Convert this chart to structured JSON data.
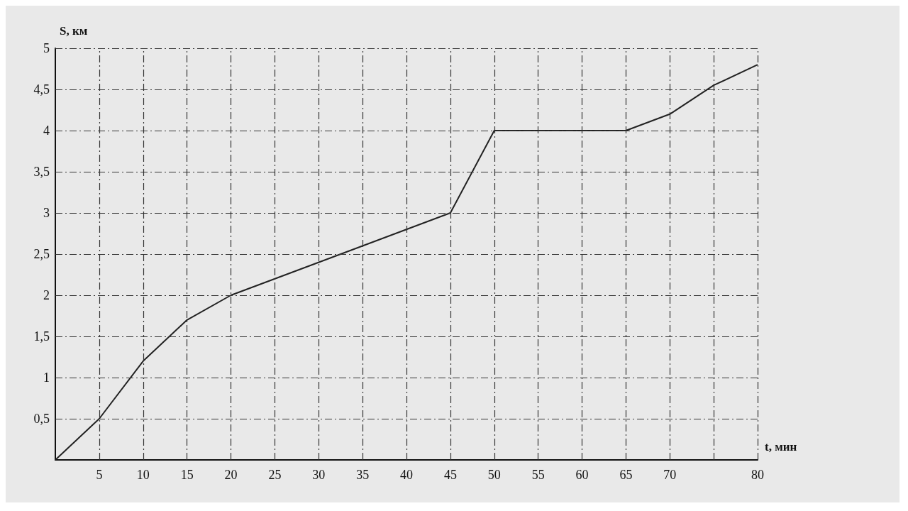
{
  "chart_data": {
    "type": "line",
    "xlabel": "t, мин",
    "ylabel": "S, км",
    "x": [
      0,
      5,
      10,
      15,
      20,
      45,
      50,
      65,
      70,
      75,
      80
    ],
    "values": [
      0,
      0.5,
      1.2,
      1.7,
      2,
      3,
      4,
      4,
      4.2,
      4.55,
      4.8
    ],
    "color": "#222222",
    "marker": "none",
    "line_style": "solid",
    "grid": true,
    "xlim": [
      0,
      80
    ],
    "xticks": [
      5,
      10,
      15,
      20,
      25,
      30,
      35,
      40,
      45,
      50,
      55,
      60,
      65,
      70,
      {
        "value": 75,
        "label": null
      },
      80
    ],
    "ylim": [
      0,
      5
    ],
    "yticks": [
      {
        "value": 0.5,
        "label": "0,5"
      },
      1,
      {
        "value": 1.5,
        "label": "1,5"
      },
      2,
      {
        "value": 2.5,
        "label": "2,5"
      },
      3,
      {
        "value": 3.5,
        "label": "3,5"
      },
      4,
      {
        "value": 4.5,
        "label": "4,5"
      },
      5
    ]
  }
}
